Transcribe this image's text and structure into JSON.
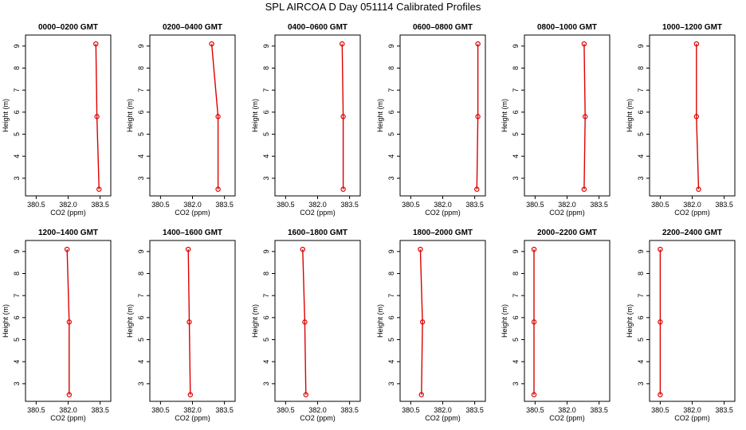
{
  "title": "SPL AIRCOA D  Day 051114  Calibrated Profiles",
  "chart_data": [
    {
      "type": "line",
      "title": "0000–0200 GMT",
      "xlabel": "CO2 (ppm)",
      "ylabel": "Height (m)",
      "xlim": [
        380.0,
        384.0
      ],
      "ylim": [
        2.2,
        9.5
      ],
      "x_ticks": [
        "380.5",
        "382.0",
        "383.5"
      ],
      "y_ticks": [
        "3",
        "4",
        "5",
        "6",
        "7",
        "8",
        "9"
      ],
      "series": [
        {
          "x": [
            383.45,
            383.35,
            383.3
          ],
          "y": [
            2.5,
            5.8,
            9.1
          ]
        }
      ]
    },
    {
      "type": "line",
      "title": "0200–0400 GMT",
      "xlabel": "CO2 (ppm)",
      "ylabel": "Height (m)",
      "xlim": [
        380.0,
        384.0
      ],
      "ylim": [
        2.2,
        9.5
      ],
      "x_ticks": [
        "380.5",
        "382.0",
        "383.5"
      ],
      "y_ticks": [
        "3",
        "4",
        "5",
        "6",
        "7",
        "8",
        "9"
      ],
      "series": [
        {
          "x": [
            383.2,
            383.2,
            382.9
          ],
          "y": [
            2.5,
            5.8,
            9.1
          ]
        }
      ]
    },
    {
      "type": "line",
      "title": "0400–0600 GMT",
      "xlabel": "CO2 (ppm)",
      "ylabel": "Height (m)",
      "xlim": [
        380.0,
        384.0
      ],
      "ylim": [
        2.2,
        9.5
      ],
      "x_ticks": [
        "380.5",
        "382.0",
        "383.5"
      ],
      "y_ticks": [
        "3",
        "4",
        "5",
        "6",
        "7",
        "8",
        "9"
      ],
      "series": [
        {
          "x": [
            383.2,
            383.2,
            383.15
          ],
          "y": [
            2.5,
            5.8,
            9.1
          ]
        }
      ]
    },
    {
      "type": "line",
      "title": "0600–0800 GMT",
      "xlabel": "CO2 (ppm)",
      "ylabel": "Height (m)",
      "xlim": [
        380.0,
        384.0
      ],
      "ylim": [
        2.2,
        9.5
      ],
      "x_ticks": [
        "380.5",
        "382.0",
        "383.5"
      ],
      "y_ticks": [
        "3",
        "4",
        "5",
        "6",
        "7",
        "8",
        "9"
      ],
      "series": [
        {
          "x": [
            383.6,
            383.65,
            383.65
          ],
          "y": [
            2.5,
            5.8,
            9.1
          ]
        }
      ]
    },
    {
      "type": "line",
      "title": "0800–1000 GMT",
      "xlabel": "CO2 (ppm)",
      "ylabel": "Height (m)",
      "xlim": [
        380.0,
        384.0
      ],
      "ylim": [
        2.2,
        9.5
      ],
      "x_ticks": [
        "380.5",
        "382.0",
        "383.5"
      ],
      "y_ticks": [
        "3",
        "4",
        "5",
        "6",
        "7",
        "8",
        "9"
      ],
      "series": [
        {
          "x": [
            382.8,
            382.85,
            382.8
          ],
          "y": [
            2.5,
            5.8,
            9.1
          ]
        }
      ]
    },
    {
      "type": "line",
      "title": "1000–1200 GMT",
      "xlabel": "CO2 (ppm)",
      "ylabel": "Height (m)",
      "xlim": [
        380.0,
        384.0
      ],
      "ylim": [
        2.2,
        9.5
      ],
      "x_ticks": [
        "380.5",
        "382.0",
        "383.5"
      ],
      "y_ticks": [
        "3",
        "4",
        "5",
        "6",
        "7",
        "8",
        "9"
      ],
      "series": [
        {
          "x": [
            382.3,
            382.2,
            382.2
          ],
          "y": [
            2.5,
            5.8,
            9.1
          ]
        }
      ]
    },
    {
      "type": "line",
      "title": "1200–1400 GMT",
      "xlabel": "CO2 (ppm)",
      "ylabel": "Height (m)",
      "xlim": [
        380.0,
        384.0
      ],
      "ylim": [
        2.2,
        9.5
      ],
      "x_ticks": [
        "380.5",
        "382.0",
        "383.5"
      ],
      "y_ticks": [
        "3",
        "4",
        "5",
        "6",
        "7",
        "8",
        "9"
      ],
      "series": [
        {
          "x": [
            382.05,
            382.05,
            381.95
          ],
          "y": [
            2.5,
            5.8,
            9.1
          ]
        }
      ]
    },
    {
      "type": "line",
      "title": "1400–1600 GMT",
      "xlabel": "CO2 (ppm)",
      "ylabel": "Height (m)",
      "xlim": [
        380.0,
        384.0
      ],
      "ylim": [
        2.2,
        9.5
      ],
      "x_ticks": [
        "380.5",
        "382.0",
        "383.5"
      ],
      "y_ticks": [
        "3",
        "4",
        "5",
        "6",
        "7",
        "8",
        "9"
      ],
      "series": [
        {
          "x": [
            381.9,
            381.85,
            381.8
          ],
          "y": [
            2.5,
            5.8,
            9.1
          ]
        }
      ]
    },
    {
      "type": "line",
      "title": "1600–1800 GMT",
      "xlabel": "CO2 (ppm)",
      "ylabel": "Height (m)",
      "xlim": [
        380.0,
        384.0
      ],
      "ylim": [
        2.2,
        9.5
      ],
      "x_ticks": [
        "380.5",
        "382.0",
        "383.5"
      ],
      "y_ticks": [
        "3",
        "4",
        "5",
        "6",
        "7",
        "8",
        "9"
      ],
      "series": [
        {
          "x": [
            381.45,
            381.4,
            381.3
          ],
          "y": [
            2.5,
            5.8,
            9.1
          ]
        }
      ]
    },
    {
      "type": "line",
      "title": "1800–2000 GMT",
      "xlabel": "CO2 (ppm)",
      "ylabel": "Height (m)",
      "xlim": [
        380.0,
        384.0
      ],
      "ylim": [
        2.2,
        9.5
      ],
      "x_ticks": [
        "380.5",
        "382.0",
        "383.5"
      ],
      "y_ticks": [
        "3",
        "4",
        "5",
        "6",
        "7",
        "8",
        "9"
      ],
      "series": [
        {
          "x": [
            381.0,
            381.05,
            380.95
          ],
          "y": [
            2.5,
            5.8,
            9.1
          ]
        }
      ]
    },
    {
      "type": "line",
      "title": "2000–2200 GMT",
      "xlabel": "CO2 (ppm)",
      "ylabel": "Height (m)",
      "xlim": [
        380.0,
        384.0
      ],
      "ylim": [
        2.2,
        9.5
      ],
      "x_ticks": [
        "380.5",
        "382.0",
        "383.5"
      ],
      "y_ticks": [
        "3",
        "4",
        "5",
        "6",
        "7",
        "8",
        "9"
      ],
      "series": [
        {
          "x": [
            380.45,
            380.45,
            380.45
          ],
          "y": [
            2.5,
            5.8,
            9.1
          ]
        }
      ]
    },
    {
      "type": "line",
      "title": "2200–2400 GMT",
      "xlabel": "CO2 (ppm)",
      "ylabel": "Height (m)",
      "xlim": [
        380.0,
        384.0
      ],
      "ylim": [
        2.2,
        9.5
      ],
      "x_ticks": [
        "380.5",
        "382.0",
        "383.5"
      ],
      "y_ticks": [
        "3",
        "4",
        "5",
        "6",
        "7",
        "8",
        "9"
      ],
      "series": [
        {
          "x": [
            380.5,
            380.5,
            380.5
          ],
          "y": [
            2.5,
            5.8,
            9.1
          ]
        }
      ]
    }
  ]
}
